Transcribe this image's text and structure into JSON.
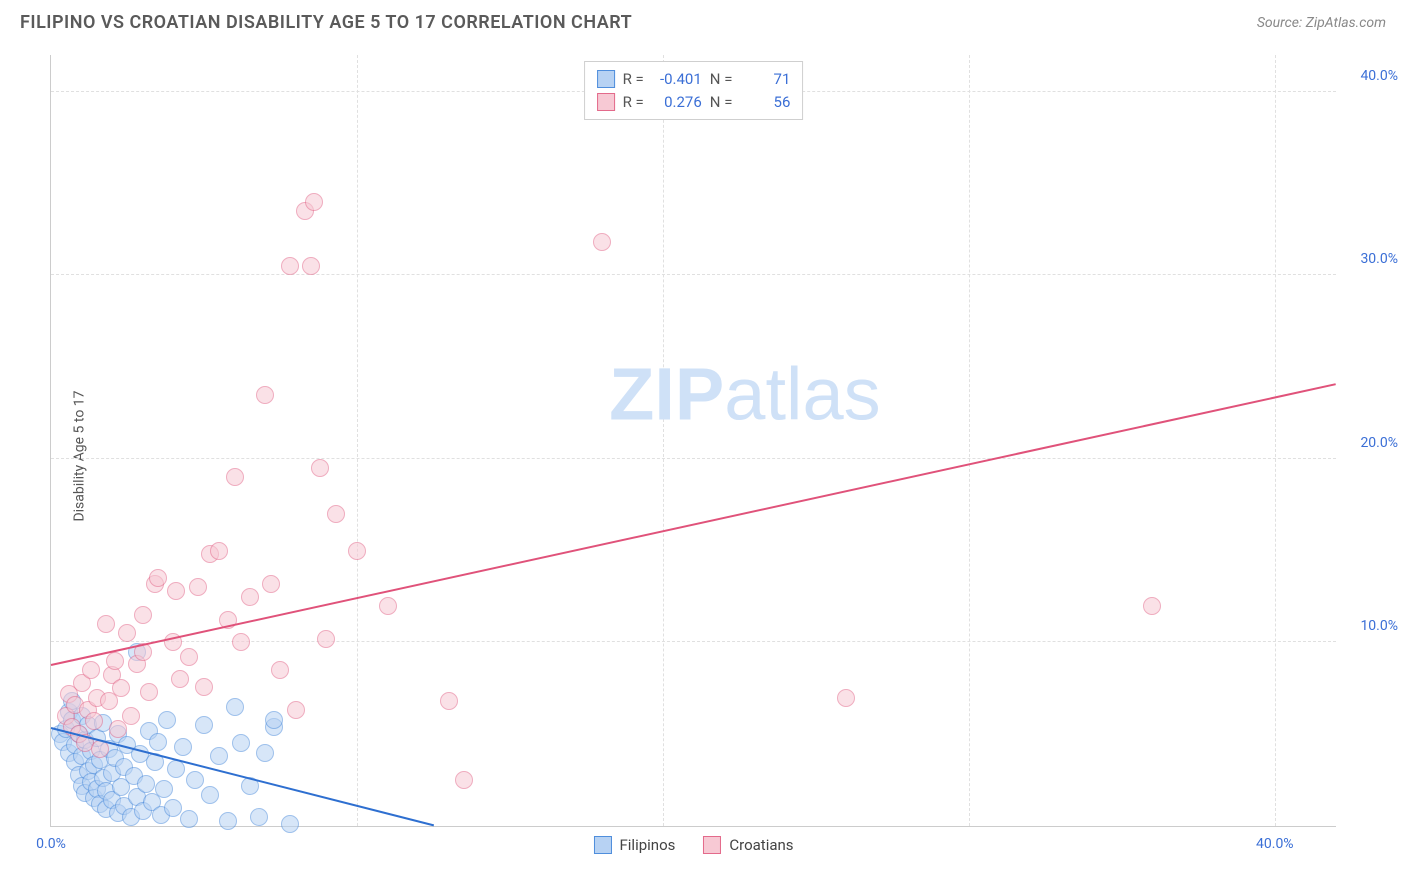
{
  "header": {
    "title": "FILIPINO VS CROATIAN DISABILITY AGE 5 TO 17 CORRELATION CHART",
    "source_prefix": "Source: ",
    "source_name": "ZipAtlas.com"
  },
  "watermark": {
    "zip": "ZIP",
    "atlas": "atlas"
  },
  "chart": {
    "type": "scatter",
    "ylabel": "Disability Age 5 to 17",
    "xlim": [
      0,
      42
    ],
    "ylim": [
      0,
      42
    ],
    "xtick_labels": {
      "0": "0.0%",
      "40": "40.0%"
    },
    "ytick_labels": {
      "10": "10.0%",
      "20": "20.0%",
      "30": "30.0%",
      "40": "40.0%"
    },
    "grid_x_positions": [
      10,
      20,
      30,
      40
    ],
    "grid_y_positions": [
      10,
      20,
      30,
      40
    ],
    "grid_color": "#e0e0e0",
    "axis_color": "#cccccc",
    "tick_font_color": "#3b6fd6",
    "tick_fontsize": 14,
    "label_fontsize": 14,
    "background_color": "#ffffff",
    "marker_radius": 9,
    "marker_border_width": 1.5,
    "series": [
      {
        "name": "Filipinos",
        "fill": "#b7d2f3",
        "stroke": "#4f8edc",
        "fill_opacity": 0.55,
        "R_label": "R =",
        "R": "-0.401",
        "N_label": "N =",
        "N": "71",
        "trend": {
          "x1": 0,
          "y1": 5.3,
          "x2": 12.5,
          "y2": 0,
          "color": "#2e6fd0",
          "width": 2.5,
          "dash_ext_to_x": 12.5
        },
        "points": [
          [
            0.3,
            5.0
          ],
          [
            0.4,
            4.6
          ],
          [
            0.5,
            5.3
          ],
          [
            0.6,
            6.2
          ],
          [
            0.6,
            4.0
          ],
          [
            0.7,
            5.8
          ],
          [
            0.7,
            6.8
          ],
          [
            0.8,
            3.5
          ],
          [
            0.8,
            4.4
          ],
          [
            0.9,
            5.0
          ],
          [
            0.9,
            2.8
          ],
          [
            1.0,
            3.8
          ],
          [
            1.0,
            2.2
          ],
          [
            1.0,
            6.0
          ],
          [
            1.1,
            4.7
          ],
          [
            1.1,
            1.8
          ],
          [
            1.2,
            3.0
          ],
          [
            1.2,
            5.5
          ],
          [
            1.3,
            2.4
          ],
          [
            1.3,
            4.1
          ],
          [
            1.4,
            1.5
          ],
          [
            1.4,
            3.3
          ],
          [
            1.5,
            4.8
          ],
          [
            1.5,
            2.0
          ],
          [
            1.6,
            1.2
          ],
          [
            1.6,
            3.6
          ],
          [
            1.7,
            2.6
          ],
          [
            1.7,
            5.6
          ],
          [
            1.8,
            1.9
          ],
          [
            1.8,
            0.9
          ],
          [
            1.9,
            4.2
          ],
          [
            2.0,
            2.9
          ],
          [
            2.0,
            1.4
          ],
          [
            2.1,
            3.7
          ],
          [
            2.2,
            0.7
          ],
          [
            2.2,
            5.0
          ],
          [
            2.3,
            2.1
          ],
          [
            2.4,
            3.2
          ],
          [
            2.4,
            1.1
          ],
          [
            2.5,
            4.4
          ],
          [
            2.6,
            0.5
          ],
          [
            2.7,
            2.7
          ],
          [
            2.8,
            1.6
          ],
          [
            2.8,
            9.5
          ],
          [
            2.9,
            3.9
          ],
          [
            3.0,
            0.8
          ],
          [
            3.1,
            2.3
          ],
          [
            3.2,
            5.2
          ],
          [
            3.3,
            1.3
          ],
          [
            3.4,
            3.5
          ],
          [
            3.5,
            4.6
          ],
          [
            3.6,
            0.6
          ],
          [
            3.7,
            2.0
          ],
          [
            3.8,
            5.8
          ],
          [
            4.0,
            1.0
          ],
          [
            4.1,
            3.1
          ],
          [
            4.3,
            4.3
          ],
          [
            4.5,
            0.4
          ],
          [
            4.7,
            2.5
          ],
          [
            5.0,
            5.5
          ],
          [
            5.2,
            1.7
          ],
          [
            5.5,
            3.8
          ],
          [
            5.8,
            0.3
          ],
          [
            6.0,
            6.5
          ],
          [
            6.2,
            4.5
          ],
          [
            6.5,
            2.2
          ],
          [
            6.8,
            0.5
          ],
          [
            7.0,
            4.0
          ],
          [
            7.3,
            5.4
          ],
          [
            7.3,
            5.8
          ],
          [
            7.8,
            0.1
          ]
        ]
      },
      {
        "name": "Croatians",
        "fill": "#f7c9d4",
        "stroke": "#e36a8b",
        "fill_opacity": 0.55,
        "R_label": "R =",
        "R": "0.276",
        "N_label": "N =",
        "N": "56",
        "trend": {
          "x1": 0,
          "y1": 8.7,
          "x2": 42,
          "y2": 24.0,
          "color": "#e0527a",
          "width": 2.5
        },
        "points": [
          [
            0.5,
            6.0
          ],
          [
            0.6,
            7.2
          ],
          [
            0.7,
            5.4
          ],
          [
            0.8,
            6.6
          ],
          [
            0.9,
            5.0
          ],
          [
            1.0,
            7.8
          ],
          [
            1.1,
            4.5
          ],
          [
            1.2,
            6.3
          ],
          [
            1.3,
            8.5
          ],
          [
            1.4,
            5.7
          ],
          [
            1.5,
            7.0
          ],
          [
            1.6,
            4.2
          ],
          [
            1.8,
            11.0
          ],
          [
            1.9,
            6.8
          ],
          [
            2.0,
            8.2
          ],
          [
            2.1,
            9.0
          ],
          [
            2.2,
            5.3
          ],
          [
            2.3,
            7.5
          ],
          [
            2.5,
            10.5
          ],
          [
            2.6,
            6.0
          ],
          [
            2.8,
            8.8
          ],
          [
            3.0,
            9.5
          ],
          [
            3.0,
            11.5
          ],
          [
            3.2,
            7.3
          ],
          [
            3.4,
            13.2
          ],
          [
            3.5,
            13.5
          ],
          [
            4.0,
            10.0
          ],
          [
            4.1,
            12.8
          ],
          [
            4.2,
            8.0
          ],
          [
            4.5,
            9.2
          ],
          [
            4.8,
            13.0
          ],
          [
            5.0,
            7.6
          ],
          [
            5.2,
            14.8
          ],
          [
            5.5,
            15.0
          ],
          [
            5.8,
            11.2
          ],
          [
            6.0,
            19.0
          ],
          [
            6.2,
            10.0
          ],
          [
            6.5,
            12.5
          ],
          [
            7.0,
            23.5
          ],
          [
            7.2,
            13.2
          ],
          [
            7.5,
            8.5
          ],
          [
            7.8,
            30.5
          ],
          [
            8.0,
            6.3
          ],
          [
            8.3,
            33.5
          ],
          [
            8.5,
            30.5
          ],
          [
            8.6,
            34.0
          ],
          [
            8.8,
            19.5
          ],
          [
            9.0,
            10.2
          ],
          [
            9.3,
            17.0
          ],
          [
            10.0,
            15.0
          ],
          [
            11.0,
            12.0
          ],
          [
            13.0,
            6.8
          ],
          [
            13.5,
            2.5
          ],
          [
            18.0,
            31.8
          ],
          [
            26.0,
            7.0
          ],
          [
            36.0,
            12.0
          ]
        ]
      }
    ]
  }
}
